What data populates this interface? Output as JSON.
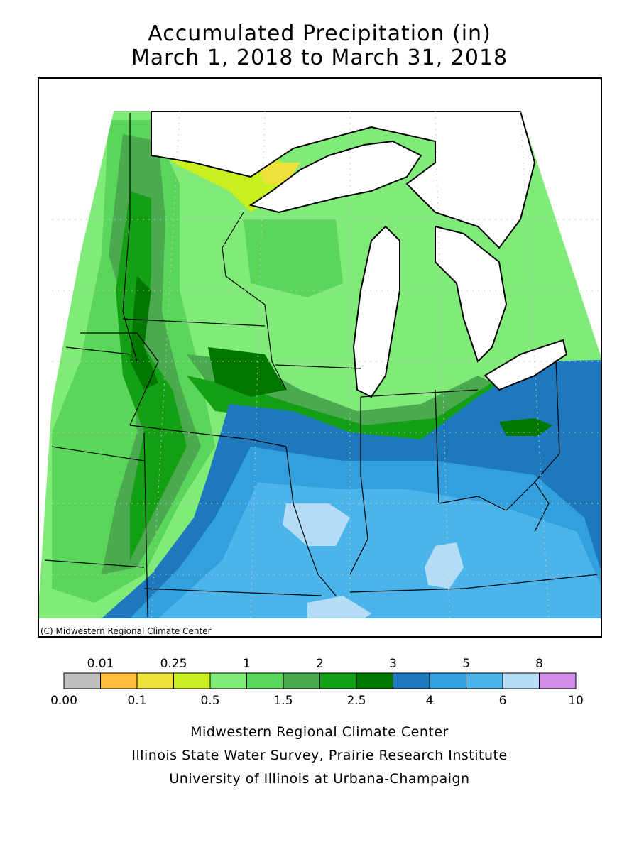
{
  "title": {
    "line1": "Accumulated Precipitation (in)",
    "line2": "March 1, 2018 to March 31, 2018"
  },
  "map": {
    "copyright": "(C) Midwestern Regional Climate Center",
    "water_color": "#ffffff",
    "boundary_color": "#000000"
  },
  "legend": {
    "top_labels": [
      "0.01",
      "0.25",
      "1",
      "2",
      "3",
      "5",
      "8"
    ],
    "bottom_labels": [
      "0.00",
      "0.1",
      "0.5",
      "1.5",
      "2.5",
      "4",
      "6",
      "10"
    ],
    "colors": [
      "#bebebe",
      "#ffbe3c",
      "#f0e03c",
      "#c8f01e",
      "#80eb78",
      "#5ad75a",
      "#4baa50",
      "#14a014",
      "#007800",
      "#1e78be",
      "#32a0dc",
      "#4bb4eb",
      "#b4dcf5",
      "#d28ceb"
    ]
  },
  "credits": {
    "line1": "Midwestern Regional Climate Center",
    "line2": "Illinois State Water Survey, Prairie Research Institute",
    "line3": "University of Illinois at Urbana-Champaign"
  }
}
